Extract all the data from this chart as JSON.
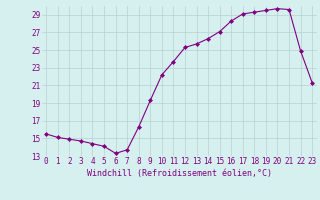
{
  "x": [
    0,
    1,
    2,
    3,
    4,
    5,
    6,
    7,
    8,
    9,
    10,
    11,
    12,
    13,
    14,
    15,
    16,
    17,
    18,
    19,
    20,
    21,
    22,
    23
  ],
  "y": [
    15.5,
    15.1,
    14.9,
    14.7,
    14.4,
    14.1,
    13.3,
    13.7,
    16.3,
    19.3,
    22.2,
    23.7,
    25.3,
    25.7,
    26.3,
    27.1,
    28.3,
    29.1,
    29.3,
    29.5,
    29.7,
    29.6,
    24.9,
    21.3
  ],
  "line_color": "#800080",
  "marker": "D",
  "marker_size": 2.0,
  "line_width": 0.8,
  "bg_color": "#d6f0f0",
  "grid_color": "#b8d0d0",
  "xlabel": "Windchill (Refroidissement éolien,°C)",
  "xlabel_fontsize": 6.0,
  "xlabel_color": "#800080",
  "tick_color": "#800080",
  "tick_fontsize": 5.5,
  "ytick_step": 2,
  "ymin": 13,
  "ymax": 30,
  "xmin": 0,
  "xmax": 23
}
